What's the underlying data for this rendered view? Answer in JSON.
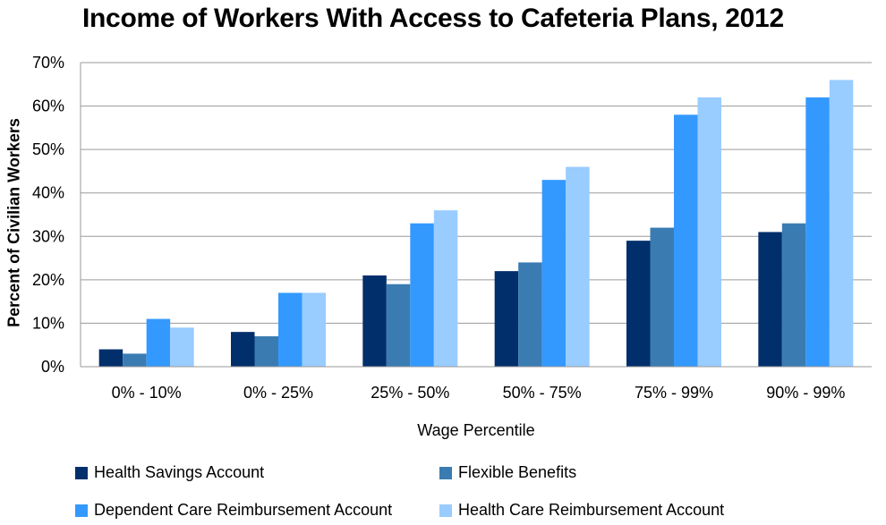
{
  "chart_data": {
    "type": "bar",
    "title": "Income of Workers With Access to Cafeteria Plans, 2012",
    "xlabel": "Wage Percentile",
    "ylabel": "Percent of Civilian Workers",
    "categories": [
      "0% - 10%",
      "0% - 25%",
      "25% - 50%",
      "50% - 75%",
      "75% - 99%",
      "90% - 99%"
    ],
    "ylim": [
      0,
      70
    ],
    "yticks": [
      "0%",
      "10%",
      "20%",
      "30%",
      "40%",
      "50%",
      "60%",
      "70%"
    ],
    "grid": true,
    "legend_position": "bottom",
    "series": [
      {
        "name": "Health Savings Account",
        "color": "#002f6c",
        "values": [
          4,
          8,
          21,
          22,
          29,
          31
        ]
      },
      {
        "name": "Flexible Benefits",
        "color": "#3a7cb2",
        "values": [
          3,
          7,
          19,
          24,
          32,
          33
        ]
      },
      {
        "name": "Dependent Care Reimbursement Account",
        "color": "#3399ff",
        "values": [
          11,
          17,
          33,
          43,
          58,
          62
        ]
      },
      {
        "name": "Health Care Reimbursement Account",
        "color": "#99ccff",
        "values": [
          9,
          17,
          36,
          46,
          62,
          66
        ]
      }
    ]
  }
}
